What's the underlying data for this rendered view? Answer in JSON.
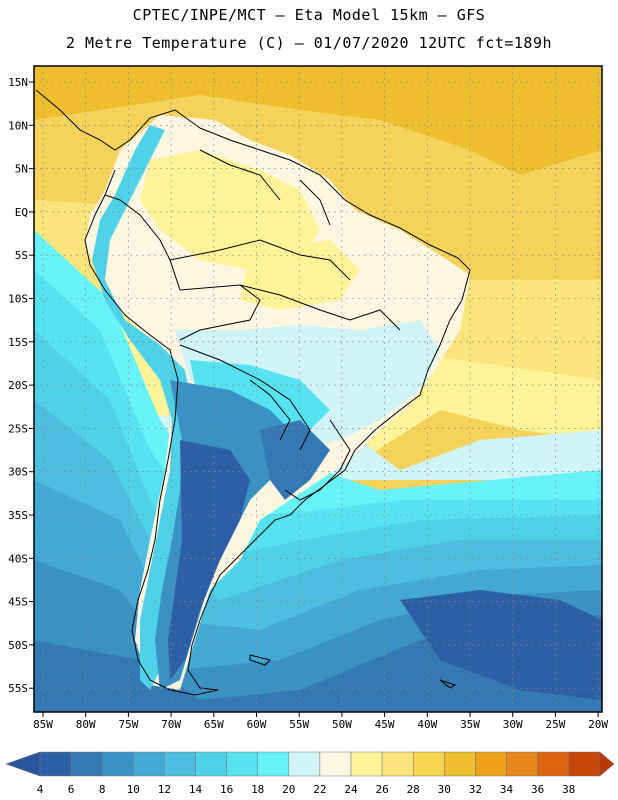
{
  "header": {
    "line1": "CPTEC/INPE/MCT  —   Eta Model 15km  —  GFS",
    "line2": "2 Metre Temperature (C) — 01/07/2020 12UTC fct=189h"
  },
  "axes": {
    "lat_labels": [
      "15N",
      "10N",
      "5N",
      "EQ",
      "5S",
      "10S",
      "15S",
      "20S",
      "25S",
      "30S",
      "35S",
      "40S",
      "45S",
      "50S",
      "55S"
    ],
    "lon_labels": [
      "85W",
      "80W",
      "75W",
      "70W",
      "65W",
      "60W",
      "55W",
      "50W",
      "45W",
      "40W",
      "35W",
      "30W",
      "25W",
      "20W"
    ]
  },
  "colorbar": {
    "labels": [
      "4",
      "6",
      "8",
      "10",
      "12",
      "14",
      "16",
      "18",
      "20",
      "22",
      "24",
      "26",
      "28",
      "30",
      "32",
      "34",
      "36",
      "38"
    ],
    "colors": [
      "#2d5fa6",
      "#3479b4",
      "#3a91c4",
      "#43a8d3",
      "#4ebee0",
      "#4fd2e8",
      "#56e2f0",
      "#66f2f6",
      "#d0f3f6",
      "#fff6e2",
      "#fff39a",
      "#fbe47c",
      "#f6d44f",
      "#efbe2e",
      "#eda21a",
      "#e8861b",
      "#dd6410",
      "#c84508"
    ],
    "under_color": "#2a56a0",
    "over_color": "#b83806"
  }
}
